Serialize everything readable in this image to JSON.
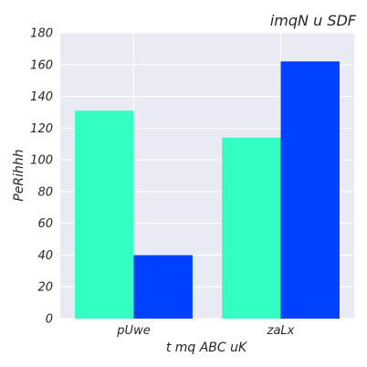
{
  "chart_data": {
    "type": "bar",
    "title": "imqN u SDF",
    "xlabel": "t mq ABC   uK",
    "ylabel": "PeRihhh",
    "categories": [
      "pUwe",
      "zaLx"
    ],
    "series": [
      {
        "values": [
          131,
          114
        ],
        "color": "#33ffc4"
      },
      {
        "values": [
          40,
          162
        ],
        "color": "#0040ff"
      }
    ],
    "ylim": [
      0,
      180
    ],
    "yticks": [
      0,
      20,
      40,
      60,
      80,
      100,
      120,
      140,
      160,
      180
    ],
    "grid": true,
    "legend": "none",
    "background": "#eaeaf2",
    "grid_color": "#ffffff"
  }
}
